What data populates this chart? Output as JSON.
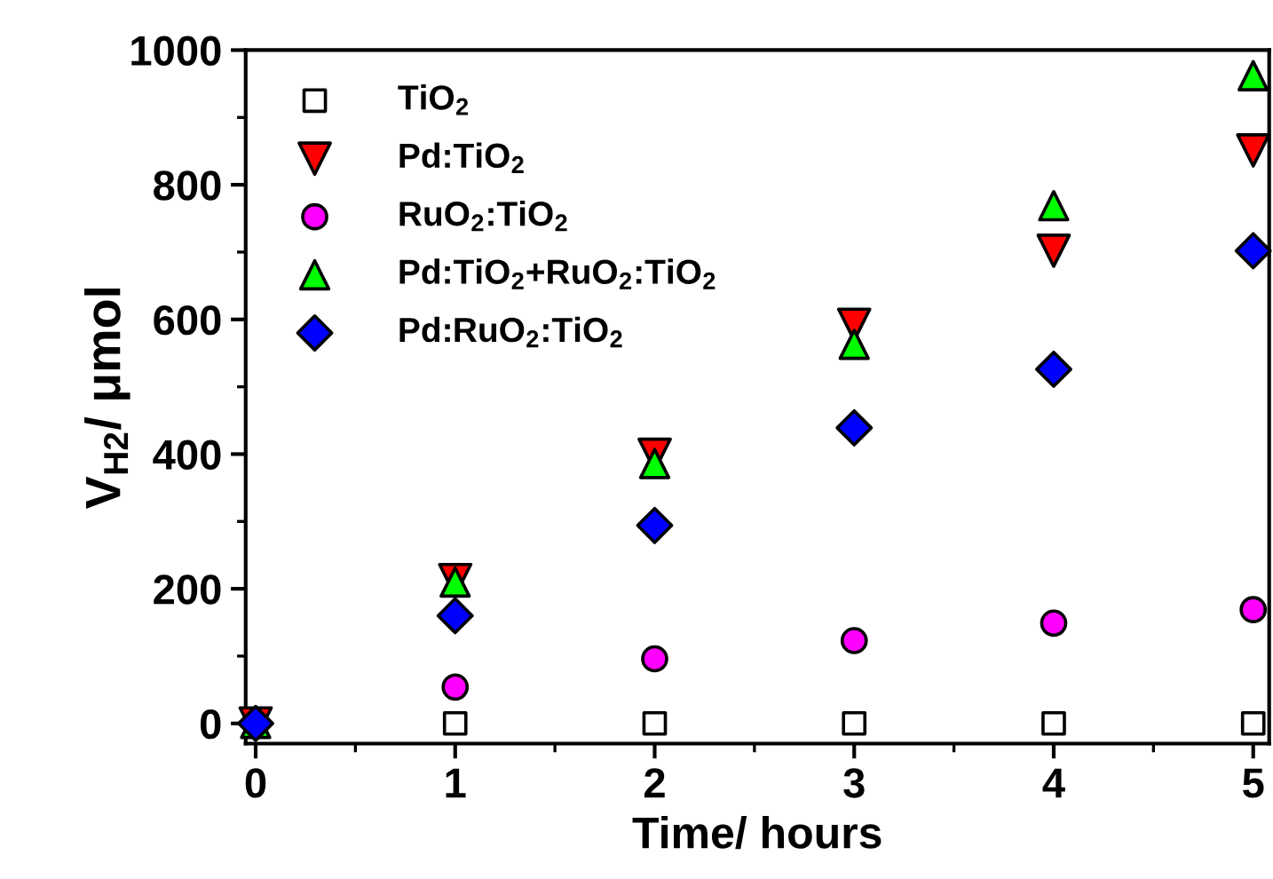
{
  "chart_data": {
    "type": "scatter",
    "xlabel": "Time/ hours",
    "ylabel": "V$_{H2}$/ μmol",
    "x": [
      0,
      1,
      2,
      3,
      4,
      5
    ],
    "series": [
      {
        "name": "TiO$_{2}$",
        "color": "#ffffff",
        "marker": "square",
        "values": [
          null,
          0,
          0,
          0,
          0,
          0
        ]
      },
      {
        "name": "Pd:TiO$_{2}$",
        "color": "#ff0000",
        "marker": "triangle_down",
        "values": [
          0,
          213,
          399,
          592,
          702,
          851
        ]
      },
      {
        "name": "RuO$_{2}$:TiO$_{2}$",
        "color": "#ff00ff",
        "marker": "circle",
        "values": [
          null,
          54,
          96,
          123,
          149,
          169
        ]
      },
      {
        "name": "Pd:TiO$_{2}$+RuO$_{2}$:TiO$_{2}$",
        "color": "#00ff00",
        "marker": "triangle",
        "values": [
          0,
          210,
          386,
          563,
          769,
          962
        ]
      },
      {
        "name": "Pd:RuO$_{2}$:TiO$_{2}$",
        "color": "#0000ff",
        "marker": "diamond",
        "values": [
          0,
          160,
          294,
          439,
          526,
          702
        ]
      }
    ],
    "xlim": [
      -0.05,
      5.08
    ],
    "ylim": [
      -30,
      1000
    ],
    "xticks": [
      0,
      1,
      2,
      3,
      4,
      5
    ],
    "yticks": [
      0,
      200,
      400,
      600,
      800,
      1000
    ],
    "grid": false,
    "legend": "top left"
  }
}
